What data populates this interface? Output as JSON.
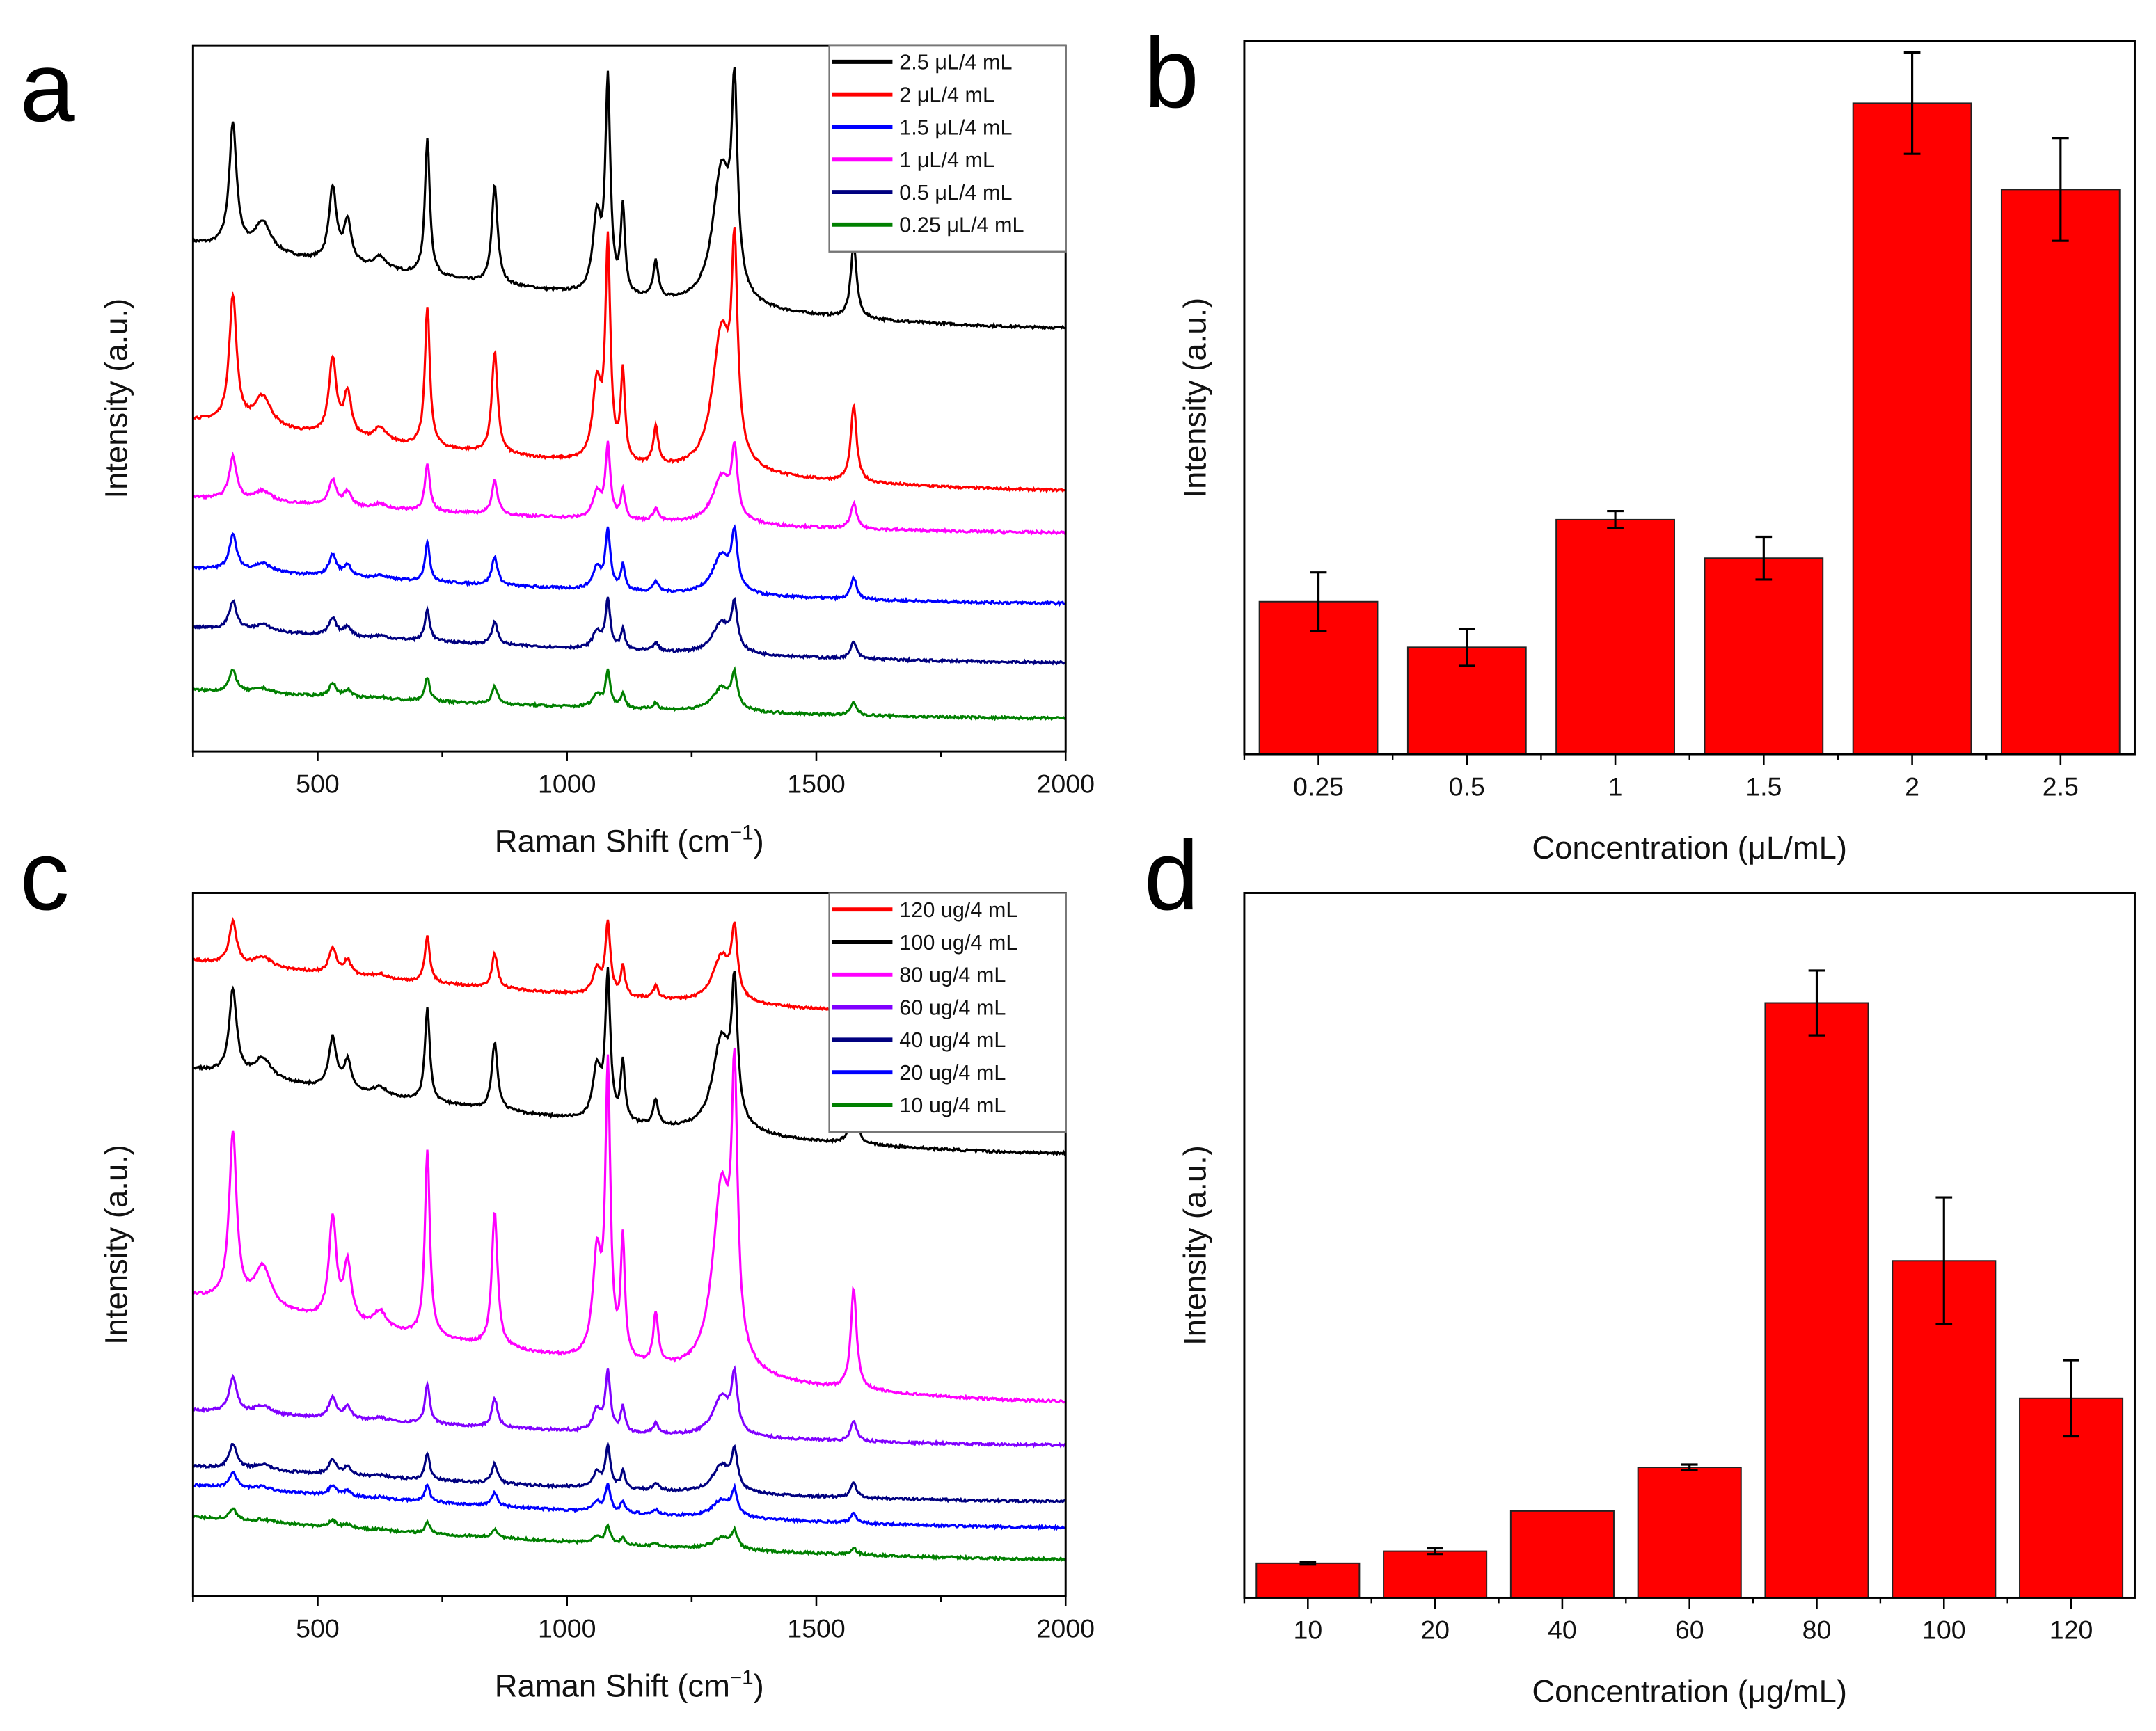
{
  "panel_labels": [
    "a",
    "b",
    "c",
    "d"
  ],
  "colors": {
    "bar": "#ff0000",
    "axis": "#000000"
  },
  "chart_data": [
    {
      "id": "a",
      "type": "line",
      "title": "",
      "xlabel": "Raman Shift (cm",
      "xlabel_sup": "−1",
      "xlabel_end": ")",
      "ylabel": "Intensity (a.u.)",
      "xlim": [
        250,
        2000
      ],
      "ylim": [
        0,
        100
      ],
      "xticks": [
        500,
        1000,
        1500,
        2000
      ],
      "legend_position": "top-right",
      "peaks": [
        {
          "x": 330,
          "rel": 0.5,
          "w": 9
        },
        {
          "x": 390,
          "rel": 0.12,
          "w": 20
        },
        {
          "x": 530,
          "rel": 0.3,
          "w": 9
        },
        {
          "x": 560,
          "rel": 0.17,
          "w": 9
        },
        {
          "x": 625,
          "rel": 0.05,
          "w": 15
        },
        {
          "x": 720,
          "rel": 0.55,
          "w": 6
        },
        {
          "x": 855,
          "rel": 0.4,
          "w": 7
        },
        {
          "x": 1060,
          "rel": 0.3,
          "w": 10
        },
        {
          "x": 1082,
          "rel": 0.85,
          "w": 6
        },
        {
          "x": 1112,
          "rel": 0.35,
          "w": 5
        },
        {
          "x": 1178,
          "rel": 0.15,
          "w": 6
        },
        {
          "x": 1310,
          "rel": 0.55,
          "w": 22
        },
        {
          "x": 1336,
          "rel": 0.75,
          "w": 7
        },
        {
          "x": 1575,
          "rel": 0.3,
          "w": 7
        }
      ],
      "series": [
        {
          "name": "2.5 μL/4 mL",
          "color": "#000000",
          "offset": 60,
          "slope": 12,
          "amp": 35
        },
        {
          "name": "2 μL/4 mL",
          "color": "#ff0000",
          "offset": 37,
          "slope": 10,
          "amp": 36
        },
        {
          "name": "1.5 μL/4 mL",
          "color": "#0000ff",
          "offset": 21,
          "slope": 5,
          "amp": 10
        },
        {
          "name": "1 μL/4 mL",
          "color": "#ff00ff",
          "offset": 31,
          "slope": 5,
          "amp": 12
        },
        {
          "name": "0.5 μL/4 mL",
          "color": "#000080",
          "offset": 12.6,
          "slope": 5,
          "amp": 8
        },
        {
          "name": "0.25 μL/4 mL",
          "color": "#008000",
          "offset": 4.7,
          "slope": 4,
          "amp": 6
        }
      ]
    },
    {
      "id": "b",
      "type": "bar",
      "xlabel": "Concentration (μL/mL)",
      "ylabel": "Intensity (a.u.)",
      "ylim": [
        0,
        100
      ],
      "categories": [
        "0.25",
        "0.5",
        "1",
        "1.5",
        "2",
        "2.5"
      ],
      "values": [
        21.4,
        15.0,
        32.9,
        27.5,
        91.3,
        79.2
      ],
      "errors": [
        4.1,
        2.6,
        1.2,
        3.0,
        7.1,
        7.2
      ]
    },
    {
      "id": "c",
      "type": "line",
      "xlabel": "Raman Shift (cm",
      "xlabel_sup": "−1",
      "xlabel_end": ")",
      "ylabel": "Intensity (a.u.)",
      "xlim": [
        250,
        2000
      ],
      "ylim": [
        0,
        100
      ],
      "xticks": [
        500,
        1000,
        1500,
        2000
      ],
      "legend_position": "top-right",
      "series": [
        {
          "name": "120 ug/4 mL",
          "color": "#ff0000",
          "offset": 82.4,
          "slope": 8,
          "amp": 12
        },
        {
          "name": "100 ug/4 mL",
          "color": "#000000",
          "offset": 63,
          "slope": 12,
          "amp": 24
        },
        {
          "name": "80 ug/4 mL",
          "color": "#ff00ff",
          "offset": 27.7,
          "slope": 15,
          "amp": 48
        },
        {
          "name": "60 ug/4 mL",
          "color": "#8000ff",
          "offset": 21.5,
          "slope": 5,
          "amp": 10
        },
        {
          "name": "40 ug/4 mL",
          "color": "#000080",
          "offset": 13.5,
          "slope": 5,
          "amp": 7
        },
        {
          "name": "20 ug/4 mL",
          "color": "#0000ff",
          "offset": 9.8,
          "slope": 6,
          "amp": 4.5
        },
        {
          "name": "10 ug/4 mL",
          "color": "#008000",
          "offset": 5.3,
          "slope": 6,
          "amp": 3
        }
      ]
    },
    {
      "id": "d",
      "type": "bar",
      "xlabel": "Concentration (μg/mL)",
      "ylabel": "Intensity (a.u.)",
      "ylim": [
        0,
        100
      ],
      "categories": [
        "10",
        "20",
        "40",
        "60",
        "80",
        "100",
        "120"
      ],
      "values": [
        4.9,
        6.6,
        12.3,
        18.5,
        84.4,
        47.8,
        28.3
      ],
      "errors": [
        0.2,
        0.4,
        0,
        0.4,
        4.6,
        9.0,
        5.4
      ]
    }
  ]
}
